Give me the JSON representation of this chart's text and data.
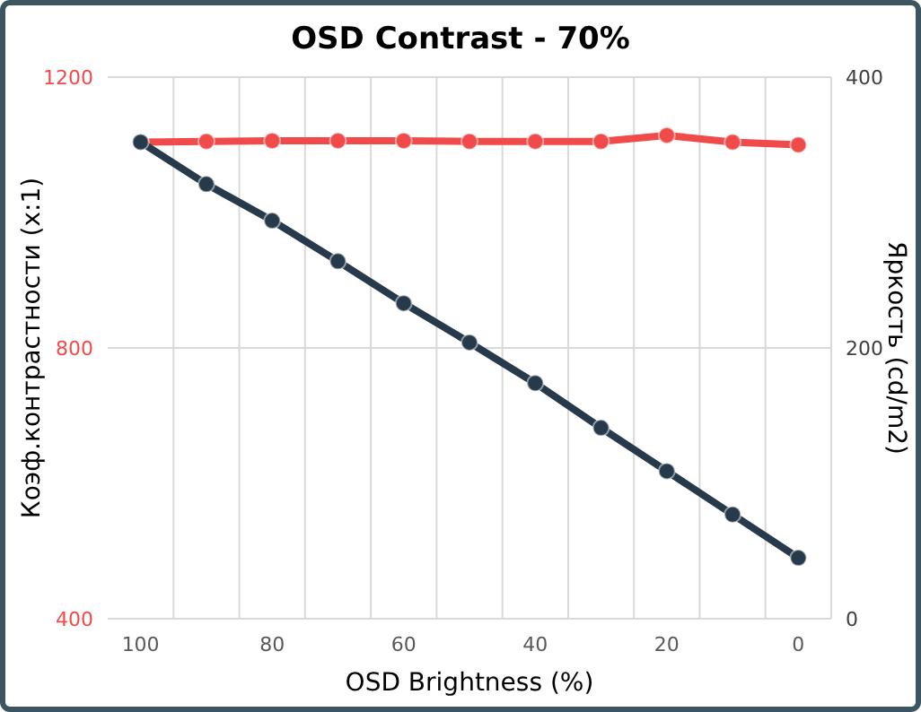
{
  "chart_data": {
    "type": "line",
    "title": "OSD Contrast - 70%",
    "xlabel": "OSD Brightness (%)",
    "ylabel": "Коэф.контрастности (x:1)",
    "y2label": "Яркость (cd/m2)",
    "categories": [
      "100",
      null,
      "80",
      null,
      "60",
      null,
      "40",
      null,
      "20",
      null,
      "0"
    ],
    "series": [
      {
        "color": "#f04a4a",
        "values": [
          1104,
          1105,
          1106,
          1106,
          1106,
          1105,
          1105,
          1105,
          1114,
          1104,
          1100
        ]
      },
      {
        "color": "#263a4c",
        "axis": "y2",
        "values": [
          352,
          321,
          294,
          264,
          233,
          204,
          174,
          141,
          109,
          77,
          45
        ]
      }
    ],
    "ylim": [
      400,
      1200
    ],
    "yticks": [
      400,
      800,
      1200
    ],
    "y2lim": [
      0,
      400
    ],
    "y2ticks": [
      0,
      200,
      400
    ],
    "grid": true,
    "marker": "circle"
  }
}
